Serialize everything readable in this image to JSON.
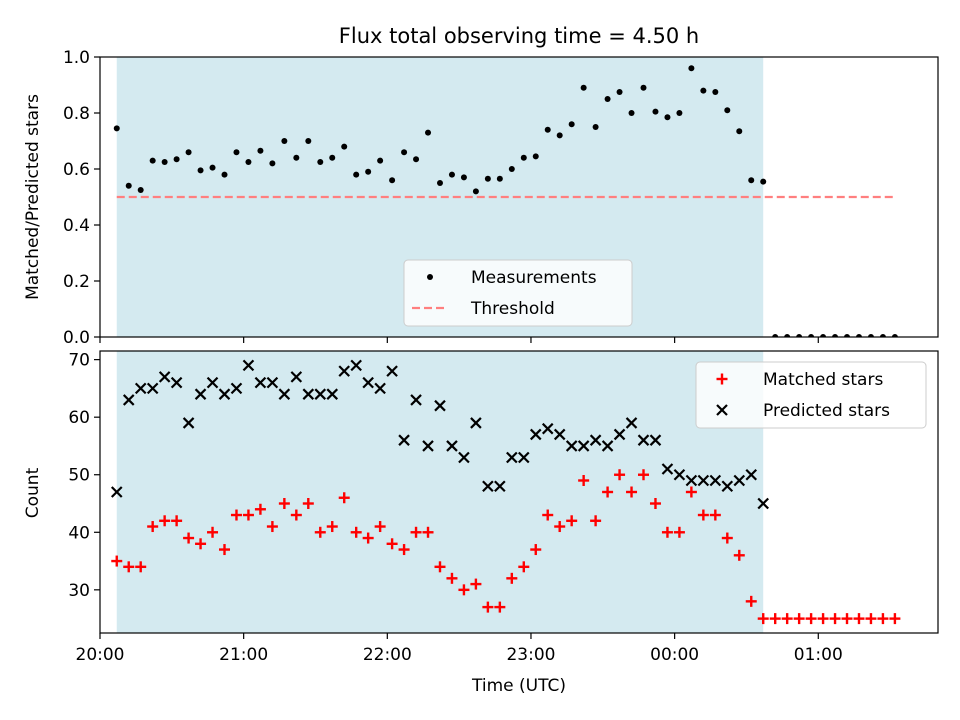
{
  "chart_data": [
    {
      "type": "scatter",
      "title": "Flux total observing time = 4.50 h",
      "xlabel": "",
      "ylabel": "Matched/Predicted stars",
      "x_axis": {
        "range": [
          "20:00",
          "01:50"
        ],
        "ticks": [
          "20:00",
          "21:00",
          "22:00",
          "23:00",
          "00:00",
          "01:00"
        ],
        "tick_labels_shown": false
      },
      "ylim": [
        0,
        1.0
      ],
      "yticks": [
        "0.0",
        "0.2",
        "0.4",
        "0.6",
        "0.8",
        "1.0"
      ],
      "shaded_interval": {
        "start": "20:07",
        "end": "00:37",
        "color": "#d4eaf0"
      },
      "legend": {
        "placement": "bottom-center",
        "entries": [
          "Measurements",
          "Threshold"
        ]
      },
      "series": [
        {
          "name": "Measurements",
          "kind": "scatter",
          "color": "#000000",
          "times": [
            "20:07",
            "20:12",
            "20:17",
            "20:22",
            "20:27",
            "20:32",
            "20:37",
            "20:42",
            "20:47",
            "20:52",
            "20:57",
            "21:02",
            "21:07",
            "21:12",
            "21:17",
            "21:22",
            "21:27",
            "21:32",
            "21:37",
            "21:42",
            "21:47",
            "21:52",
            "21:57",
            "22:02",
            "22:07",
            "22:12",
            "22:17",
            "22:22",
            "22:27",
            "22:32",
            "22:37",
            "22:42",
            "22:47",
            "22:52",
            "22:57",
            "23:02",
            "23:07",
            "23:12",
            "23:17",
            "23:22",
            "23:27",
            "23:32",
            "23:37",
            "23:42",
            "23:47",
            "23:52",
            "23:57",
            "00:02",
            "00:07",
            "00:12",
            "00:17",
            "00:22",
            "00:27",
            "00:32",
            "00:37",
            "00:42",
            "00:47",
            "00:52",
            "00:57",
            "01:02",
            "01:07",
            "01:12",
            "01:17",
            "01:22",
            "01:27",
            "01:32"
          ],
          "values": [
            0.745,
            0.54,
            0.525,
            0.63,
            0.625,
            0.635,
            0.66,
            0.595,
            0.605,
            0.58,
            0.66,
            0.625,
            0.665,
            0.62,
            0.7,
            0.64,
            0.7,
            0.625,
            0.64,
            0.68,
            0.58,
            0.59,
            0.63,
            0.56,
            0.66,
            0.635,
            0.73,
            0.55,
            0.58,
            0.57,
            0.52,
            0.565,
            0.565,
            0.6,
            0.64,
            0.645,
            0.74,
            0.72,
            0.76,
            0.89,
            0.75,
            0.85,
            0.875,
            0.8,
            0.89,
            0.805,
            0.785,
            0.8,
            0.96,
            0.88,
            0.875,
            0.81,
            0.735,
            0.56,
            0.555,
            0,
            0,
            0,
            0,
            0,
            0,
            0,
            0,
            0,
            0,
            0
          ]
        },
        {
          "name": "Threshold",
          "kind": "dashed-line",
          "color": "#ff7f7f",
          "times": [
            "20:07",
            "01:32"
          ],
          "values": [
            0.5,
            0.5
          ]
        }
      ]
    },
    {
      "type": "scatter",
      "title": "",
      "xlabel": "Time (UTC)",
      "ylabel": "Count",
      "x_axis": {
        "range": [
          "20:00",
          "01:50"
        ],
        "ticks": [
          "20:00",
          "21:00",
          "22:00",
          "23:00",
          "00:00",
          "01:00"
        ],
        "tick_labels": [
          "20:00",
          "21:00",
          "22:00",
          "23:00",
          "00:00",
          "01:00"
        ]
      },
      "ylim": [
        22.5,
        71.5
      ],
      "yticks": [
        "30",
        "40",
        "50",
        "60",
        "70"
      ],
      "shaded_interval": {
        "start": "20:07",
        "end": "00:37",
        "color": "#d4eaf0"
      },
      "legend": {
        "placement": "top-right",
        "entries": [
          "Matched stars",
          "Predicted stars"
        ]
      },
      "series": [
        {
          "name": "Matched stars",
          "marker": "+",
          "color": "#ff0000",
          "times": [
            "20:07",
            "20:12",
            "20:17",
            "20:22",
            "20:27",
            "20:32",
            "20:37",
            "20:42",
            "20:47",
            "20:52",
            "20:57",
            "21:02",
            "21:07",
            "21:12",
            "21:17",
            "21:22",
            "21:27",
            "21:32",
            "21:37",
            "21:42",
            "21:47",
            "21:52",
            "21:57",
            "22:02",
            "22:07",
            "22:12",
            "22:17",
            "22:22",
            "22:27",
            "22:32",
            "22:37",
            "22:42",
            "22:47",
            "22:52",
            "22:57",
            "23:02",
            "23:07",
            "23:12",
            "23:17",
            "23:22",
            "23:27",
            "23:32",
            "23:37",
            "23:42",
            "23:47",
            "23:52",
            "23:57",
            "00:02",
            "00:07",
            "00:12",
            "00:17",
            "00:22",
            "00:27",
            "00:32",
            "00:37",
            "00:42",
            "00:47",
            "00:52",
            "00:57",
            "01:02",
            "01:07",
            "01:12",
            "01:17",
            "01:22",
            "01:27",
            "01:32"
          ],
          "values": [
            35,
            34,
            34,
            41,
            42,
            42,
            39,
            38,
            40,
            37,
            43,
            43,
            44,
            41,
            45,
            43,
            45,
            40,
            41,
            46,
            40,
            39,
            41,
            38,
            37,
            40,
            40,
            34,
            32,
            30,
            31,
            27,
            27,
            32,
            34,
            37,
            43,
            41,
            42,
            49,
            42,
            47,
            50,
            47,
            50,
            45,
            40,
            40,
            47,
            43,
            43,
            39,
            36,
            28,
            25,
            25,
            25,
            25,
            25,
            25,
            25,
            25,
            25,
            25,
            25,
            25
          ]
        },
        {
          "name": "Predicted stars",
          "marker": "x",
          "color": "#000000",
          "times": [
            "20:07",
            "20:12",
            "20:17",
            "20:22",
            "20:27",
            "20:32",
            "20:37",
            "20:42",
            "20:47",
            "20:52",
            "20:57",
            "21:02",
            "21:07",
            "21:12",
            "21:17",
            "21:22",
            "21:27",
            "21:32",
            "21:37",
            "21:42",
            "21:47",
            "21:52",
            "21:57",
            "22:02",
            "22:07",
            "22:12",
            "22:17",
            "22:22",
            "22:27",
            "22:32",
            "22:37",
            "22:42",
            "22:47",
            "22:52",
            "22:57",
            "23:02",
            "23:07",
            "23:12",
            "23:17",
            "23:22",
            "23:27",
            "23:32",
            "23:37",
            "23:42",
            "23:47",
            "23:52",
            "23:57",
            "00:02",
            "00:07",
            "00:12",
            "00:17",
            "00:22",
            "00:27",
            "00:32",
            "00:37",
            "00:42"
          ],
          "values": [
            47,
            63,
            65,
            65,
            67,
            66,
            59,
            64,
            66,
            64,
            65,
            69,
            66,
            66,
            64,
            67,
            64,
            64,
            64,
            68,
            69,
            66,
            65,
            68,
            56,
            63,
            55,
            62,
            55,
            53,
            59,
            48,
            48,
            53,
            53,
            57,
            58,
            57,
            55,
            55,
            56,
            55,
            57,
            59,
            56,
            56,
            51,
            50,
            49,
            49,
            49,
            48,
            49,
            50,
            45,
            null
          ]
        }
      ]
    }
  ]
}
